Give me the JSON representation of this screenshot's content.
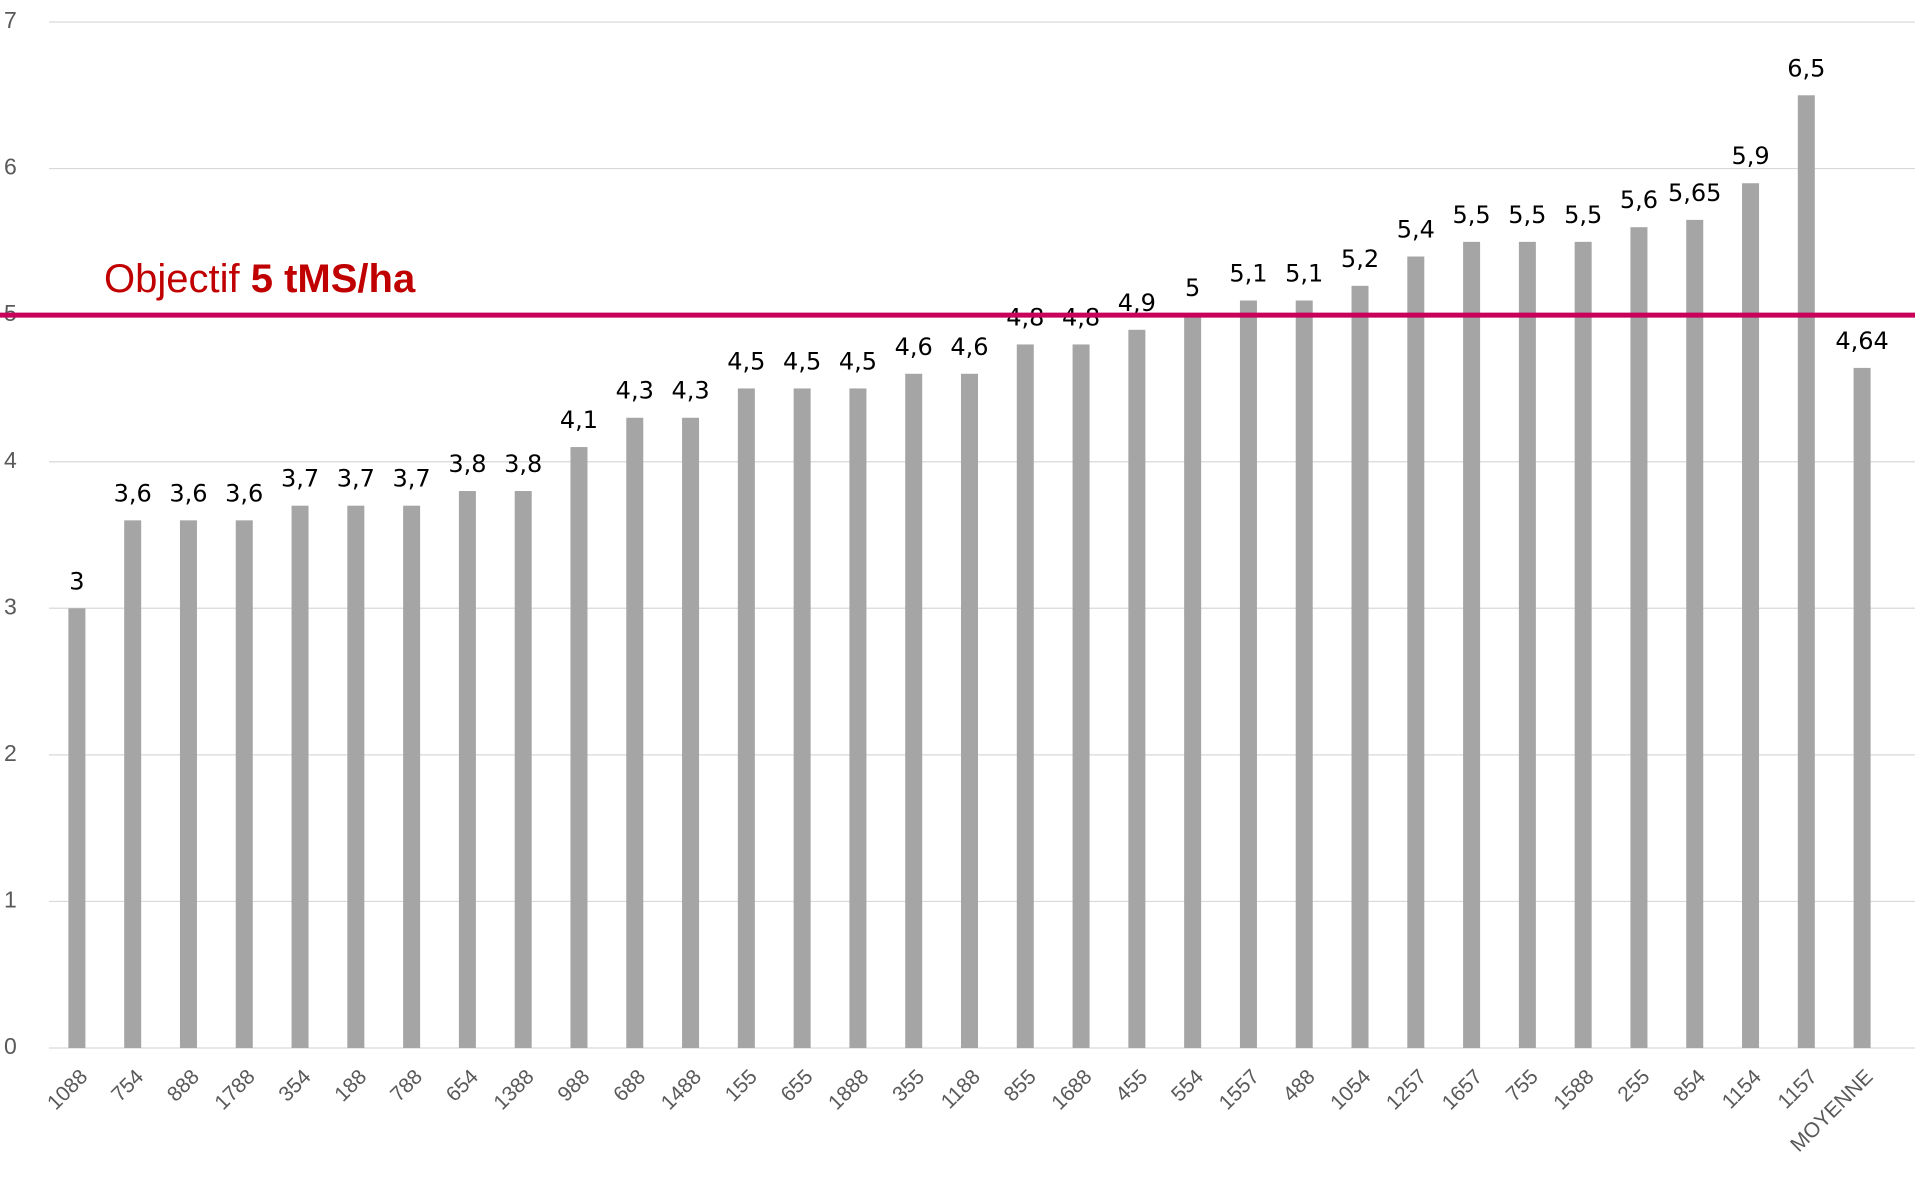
{
  "chart_data": {
    "type": "bar",
    "categories": [
      "1088",
      "754",
      "888",
      "1788",
      "354",
      "188",
      "788",
      "654",
      "1388",
      "988",
      "688",
      "1488",
      "155",
      "655",
      "1888",
      "355",
      "1188",
      "855",
      "1688",
      "455",
      "554",
      "1557",
      "488",
      "1054",
      "1257",
      "1657",
      "755",
      "1588",
      "255",
      "854",
      "1154",
      "1157",
      "MOYENNE"
    ],
    "values": [
      3,
      3.6,
      3.6,
      3.6,
      3.7,
      3.7,
      3.7,
      3.8,
      3.8,
      4.1,
      4.3,
      4.3,
      4.5,
      4.5,
      4.5,
      4.6,
      4.6,
      4.8,
      4.8,
      4.9,
      5,
      5.1,
      5.1,
      5.2,
      5.4,
      5.5,
      5.5,
      5.5,
      5.6,
      5.65,
      5.9,
      6.5,
      4.64
    ],
    "value_labels": [
      "3",
      "3,6",
      "3,6",
      "3,6",
      "3,7",
      "3,7",
      "3,7",
      "3,8",
      "3,8",
      "4,1",
      "4,3",
      "4,3",
      "4,5",
      "4,5",
      "4,5",
      "4,6",
      "4,6",
      "4,8",
      "4,8",
      "4,9",
      "5",
      "5,1",
      "5,1",
      "5,2",
      "5,4",
      "5,5",
      "5,5",
      "5,5",
      "5,6",
      "5,65",
      "5,9",
      "6,5",
      "4,64"
    ],
    "color": "#a5a5a5",
    "ylim": [
      0,
      7
    ],
    "yticks": [
      0,
      1,
      2,
      3,
      4,
      5,
      6,
      7
    ],
    "grid": true,
    "target": {
      "value": 5,
      "label": "Objectif",
      "label_bold": "5 tMS/ha",
      "color": "#c8005a"
    }
  }
}
